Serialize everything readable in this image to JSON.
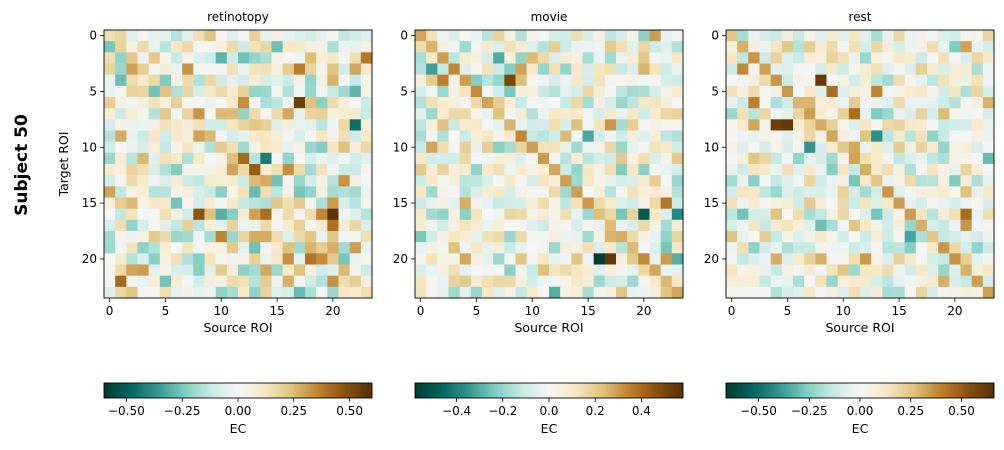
{
  "figure": {
    "row_label": "Subject 50",
    "colormap": "BrBG_r",
    "colormap_stops": [
      "#003c30",
      "#01665e",
      "#35978f",
      "#80cdc1",
      "#c7eae5",
      "#f5f5f5",
      "#f6e8c3",
      "#dfc27d",
      "#bf812d",
      "#8c510a",
      "#543005"
    ]
  },
  "chart_data": [
    {
      "type": "heatmap",
      "title": "retinotopy",
      "xlabel": "Source ROI",
      "ylabel": "Target ROI",
      "x_ticks": [
        0,
        5,
        10,
        15,
        20
      ],
      "y_ticks": [
        0,
        5,
        10,
        15,
        20
      ],
      "n_rows": 24,
      "n_cols": 24,
      "vmin": -0.6,
      "vmax": 0.6,
      "colorbar_label": "EC",
      "colorbar_ticks": [
        -0.5,
        -0.25,
        0.0,
        0.25,
        0.5
      ],
      "colorbar_ticklabels": [
        "−0.50",
        "−0.25",
        "0.00",
        "0.25",
        "0.50"
      ],
      "seed": 11,
      "diag_value": 0.2,
      "noise_amp": 0.2,
      "strong_cells": [
        [
          16,
          20,
          0.58
        ],
        [
          17,
          20,
          0.4
        ],
        [
          16,
          19,
          0.35
        ],
        [
          16,
          13,
          0.3
        ],
        [
          20,
          16,
          0.33
        ],
        [
          20,
          19,
          0.34
        ],
        [
          22,
          20,
          0.33
        ],
        [
          9,
          8,
          0.3
        ],
        [
          7,
          8,
          0.32
        ],
        [
          18,
          13,
          0.28
        ],
        [
          16,
          23,
          -0.15
        ],
        [
          14,
          20,
          -0.18
        ],
        [
          21,
          12,
          -0.22
        ],
        [
          5,
          16,
          -0.16
        ],
        [
          13,
          17,
          -0.2
        ],
        [
          14,
          21,
          -0.16
        ]
      ]
    },
    {
      "type": "heatmap",
      "title": "movie",
      "xlabel": "Source ROI",
      "ylabel": "",
      "x_ticks": [
        0,
        5,
        10,
        15,
        20
      ],
      "y_ticks": [
        0,
        5,
        10,
        15,
        20
      ],
      "n_rows": 24,
      "n_cols": 24,
      "vmin": -0.58,
      "vmax": 0.58,
      "colorbar_label": "EC",
      "colorbar_ticks": [
        -0.4,
        -0.2,
        0.0,
        0.2,
        0.4
      ],
      "colorbar_ticklabels": [
        "−0.4",
        "−0.2",
        "0.0",
        "0.2",
        "0.4"
      ],
      "seed": 23,
      "diag_value": 0.28,
      "noise_amp": 0.16,
      "strong_cells": [
        [
          4,
          8,
          0.5
        ],
        [
          20,
          17,
          0.55
        ],
        [
          20,
          16,
          -0.58
        ],
        [
          16,
          20,
          -0.5
        ],
        [
          16,
          23,
          -0.38
        ],
        [
          20,
          23,
          -0.3
        ],
        [
          20,
          22,
          0.3
        ],
        [
          16,
          4,
          -0.22
        ],
        [
          14,
          13,
          -0.18
        ],
        [
          20,
          4,
          0.28
        ],
        [
          20,
          9,
          0.22
        ],
        [
          20,
          14,
          0.22
        ],
        [
          16,
          19,
          0.18
        ],
        [
          11,
          13,
          -0.14
        ]
      ]
    },
    {
      "type": "heatmap",
      "title": "rest",
      "xlabel": "Source ROI",
      "ylabel": "",
      "x_ticks": [
        0,
        5,
        10,
        15,
        20
      ],
      "y_ticks": [
        0,
        5,
        10,
        15,
        20
      ],
      "n_rows": 24,
      "n_cols": 24,
      "vmin": -0.66,
      "vmax": 0.66,
      "colorbar_label": "EC",
      "colorbar_ticks": [
        -0.5,
        -0.25,
        0.0,
        0.25,
        0.5
      ],
      "colorbar_ticklabels": [
        "−0.50",
        "−0.25",
        "0.00",
        "0.25",
        "0.50"
      ],
      "seed": 37,
      "diag_value": 0.3,
      "noise_amp": 0.18,
      "strong_cells": [
        [
          8,
          5,
          0.62
        ],
        [
          4,
          8,
          0.62
        ],
        [
          5,
          9,
          0.45
        ],
        [
          8,
          4,
          0.6
        ],
        [
          7,
          11,
          0.45
        ],
        [
          13,
          0,
          -0.2
        ],
        [
          9,
          13,
          -0.42
        ],
        [
          16,
          13,
          -0.28
        ],
        [
          16,
          21,
          0.45
        ],
        [
          17,
          21,
          0.35
        ],
        [
          6,
          2,
          0.4
        ],
        [
          3,
          1,
          0.38
        ],
        [
          20,
          8,
          0.3
        ],
        [
          22,
          19,
          0.3
        ],
        [
          1,
          1,
          0.3
        ],
        [
          17,
          11,
          0.25
        ]
      ]
    }
  ]
}
